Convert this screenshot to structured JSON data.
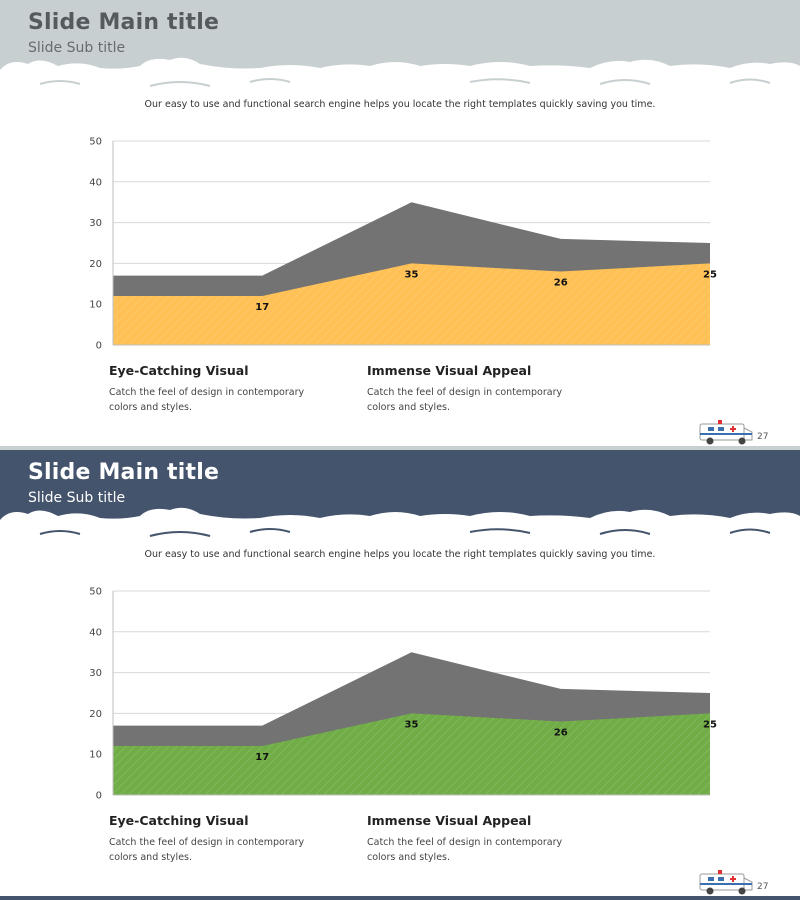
{
  "slides": [
    {
      "title": "Slide Main title",
      "subtitle": "Slide Sub title",
      "caption": "Our easy to use and functional search engine helps you locate the right templates quickly saving you time.",
      "colors": {
        "header_bg": "#c8cfd1",
        "title": "#555a5f",
        "subtitle": "#666b70",
        "front_area": "#ffc155",
        "back_area": "#737373",
        "strip": "#c8cfd1"
      },
      "features": [
        {
          "title": "Eye-Catching Visual",
          "desc_line1": "Catch the feel of design in contemporary",
          "desc_line2": "colors and styles."
        },
        {
          "title": "Immense Visual Appeal",
          "desc_line1": "Catch the feel of design in contemporary",
          "desc_line2": "colors and styles."
        }
      ],
      "page_number": "27"
    },
    {
      "title": "Slide Main title",
      "subtitle": "Slide Sub title",
      "caption": "Our easy to use and functional search engine helps you locate the right templates quickly saving you time.",
      "colors": {
        "header_bg": "#44546c",
        "title": "#ffffff",
        "subtitle": "#ffffff",
        "front_area": "#70ad47",
        "back_area": "#737373",
        "strip": "#44546c"
      },
      "features": [
        {
          "title": "Eye-Catching Visual",
          "desc_line1": "Catch the feel of design in contemporary",
          "desc_line2": "colors and styles."
        },
        {
          "title": "Immense Visual Appeal",
          "desc_line1": "Catch the feel of design in contemporary",
          "desc_line2": "colors and styles."
        }
      ],
      "page_number": "27"
    }
  ],
  "chart_data": [
    {
      "type": "area",
      "x": [
        1,
        2,
        3,
        4,
        5
      ],
      "ylim": [
        0,
        50
      ],
      "yticks": [
        "0",
        "10",
        "20",
        "30",
        "40",
        "50"
      ],
      "grid": true,
      "series": [
        {
          "values": [
            17,
            17,
            35,
            26,
            25
          ]
        },
        {
          "values": [
            12,
            12,
            20,
            18,
            20
          ]
        }
      ],
      "data_labels": [
        {
          "text": "17",
          "x": 2,
          "y": 12
        },
        {
          "text": "35",
          "x": 3,
          "y": 20
        },
        {
          "text": "26",
          "x": 4,
          "y": 18
        },
        {
          "text": "25",
          "x": 5,
          "y": 20
        }
      ]
    },
    {
      "type": "area",
      "x": [
        1,
        2,
        3,
        4,
        5
      ],
      "ylim": [
        0,
        50
      ],
      "yticks": [
        "0",
        "10",
        "20",
        "30",
        "40",
        "50"
      ],
      "grid": true,
      "series": [
        {
          "values": [
            17,
            17,
            35,
            26,
            25
          ]
        },
        {
          "values": [
            12,
            12,
            20,
            18,
            20
          ]
        }
      ],
      "data_labels": [
        {
          "text": "17",
          "x": 2,
          "y": 12
        },
        {
          "text": "35",
          "x": 3,
          "y": 20
        },
        {
          "text": "26",
          "x": 4,
          "y": 18
        },
        {
          "text": "25",
          "x": 5,
          "y": 20
        }
      ]
    }
  ]
}
